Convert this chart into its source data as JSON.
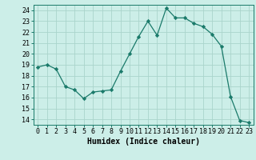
{
  "x": [
    0,
    1,
    2,
    3,
    4,
    5,
    6,
    7,
    8,
    9,
    10,
    11,
    12,
    13,
    14,
    15,
    16,
    17,
    18,
    19,
    20,
    21,
    22,
    23
  ],
  "y": [
    18.8,
    19.0,
    18.6,
    17.0,
    16.7,
    15.9,
    16.5,
    16.6,
    16.7,
    18.4,
    20.0,
    21.6,
    23.0,
    21.7,
    24.2,
    23.3,
    23.3,
    22.8,
    22.5,
    21.8,
    20.7,
    16.1,
    13.9,
    13.7
  ],
  "line_color": "#1a7a6a",
  "marker": "D",
  "marker_size": 2.2,
  "bg_color": "#cceee8",
  "grid_color": "#aad4cc",
  "xlabel": "Humidex (Indice chaleur)",
  "xlim": [
    -0.5,
    23.5
  ],
  "ylim": [
    13.5,
    24.5
  ],
  "yticks": [
    14,
    15,
    16,
    17,
    18,
    19,
    20,
    21,
    22,
    23,
    24
  ],
  "xticks": [
    0,
    1,
    2,
    3,
    4,
    5,
    6,
    7,
    8,
    9,
    10,
    11,
    12,
    13,
    14,
    15,
    16,
    17,
    18,
    19,
    20,
    21,
    22,
    23
  ],
  "tick_fontsize": 6.0,
  "xlabel_fontsize": 7.0,
  "linewidth": 0.9
}
